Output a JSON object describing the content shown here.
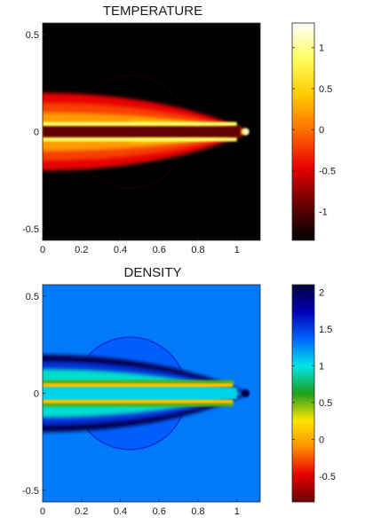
{
  "chart_data": [
    {
      "type": "heatmap",
      "title": "TEMPERATURE",
      "xlabel": "",
      "ylabel": "",
      "x_ticks": [
        "0",
        "0.2",
        "0.4",
        "0.6",
        "0.8",
        "1"
      ],
      "x_tick_values": [
        0,
        0.2,
        0.4,
        0.6,
        0.8,
        1
      ],
      "y_ticks": [
        "-0.5",
        "0",
        "0.5"
      ],
      "y_tick_values": [
        -0.5,
        0,
        0.5
      ],
      "colorbar_ticks": [
        "-1",
        "-0.5",
        "0",
        "0.5",
        "1"
      ],
      "colorbar_tick_values": [
        -1,
        -0.5,
        0,
        0.5,
        1
      ],
      "xlim": [
        0,
        1.12
      ],
      "ylim": [
        -0.56,
        0.56
      ],
      "colorbar_range": [
        -1.35,
        1.3
      ],
      "colormap": [
        "#000000",
        "#6a0000",
        "#e80000",
        "#ff6a00",
        "#ffc800",
        "#ffff5a",
        "#ffffff"
      ],
      "background_value": -1.35,
      "features": {
        "jet_tip_x": 1.06,
        "jet_max_halfwidth": 0.2,
        "shock_circle_center": [
          0.45,
          0
        ],
        "shock_circle_radius": 0.29
      }
    },
    {
      "type": "heatmap",
      "title": "DENSITY",
      "xlabel": "",
      "ylabel": "",
      "x_ticks": [
        "0",
        "0.2",
        "0.4",
        "0.6",
        "0.8",
        "1"
      ],
      "x_tick_values": [
        0,
        0.2,
        0.4,
        0.6,
        0.8,
        1
      ],
      "y_ticks": [
        "-0.5",
        "0",
        "0.5"
      ],
      "y_tick_values": [
        -0.5,
        0,
        0.5
      ],
      "colorbar_ticks": [
        "-0.5",
        "0",
        "0.5",
        "1",
        "1.5",
        "2"
      ],
      "colorbar_tick_values": [
        -0.5,
        0,
        0.5,
        1,
        1.5,
        2
      ],
      "xlim": [
        0,
        1.12
      ],
      "ylim": [
        -0.56,
        0.56
      ],
      "colorbar_range": [
        -0.85,
        2.1
      ],
      "colormap": [
        "#6a0000",
        "#e80000",
        "#ff8c00",
        "#ffe600",
        "#1e9e1e",
        "#00e6e6",
        "#0064ff",
        "#0000b4",
        "#000040"
      ],
      "background_value": 1.3,
      "features": {
        "jet_tip_x": 1.06,
        "jet_max_halfwidth": 0.2,
        "shock_circle_center": [
          0.45,
          0
        ],
        "shock_circle_radius": 0.29
      }
    }
  ]
}
